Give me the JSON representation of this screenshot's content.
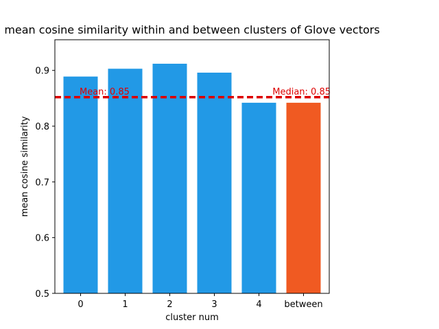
{
  "chart_data": {
    "type": "bar",
    "title": "mean cosine similarity within and between clusters of Glove vectors",
    "xlabel": "cluster num",
    "ylabel": "mean cosine similarity",
    "categories": [
      "0",
      "1",
      "2",
      "3",
      "4",
      "between"
    ],
    "values": [
      0.889,
      0.903,
      0.912,
      0.896,
      0.842,
      0.842
    ],
    "bar_colors": [
      "#2299e6",
      "#2299e6",
      "#2299e6",
      "#2299e6",
      "#2299e6",
      "#f05a22"
    ],
    "ylim": [
      0.5,
      0.955
    ],
    "yticks": [
      0.5,
      0.6,
      0.7,
      0.8,
      0.9
    ],
    "ytick_labels": [
      "0.5",
      "0.6",
      "0.7",
      "0.8",
      "0.9"
    ],
    "reference_line": {
      "value": 0.852,
      "style": "dashed",
      "color": "#dd0000"
    },
    "annotations": [
      {
        "text": "Mean: 0.85",
        "color": "#dd0000",
        "anchor": "left"
      },
      {
        "text": "Median: 0.85",
        "color": "#dd0000",
        "anchor": "right"
      }
    ],
    "grid": false,
    "legend": "none"
  }
}
